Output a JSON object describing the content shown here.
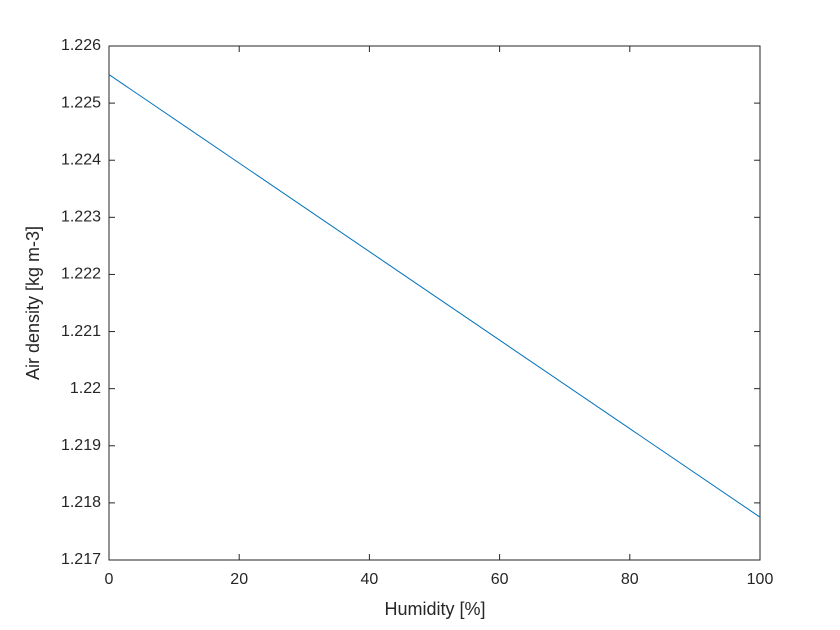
{
  "chart_data": {
    "type": "line",
    "xlabel": "Humidity [%]",
    "ylabel": "Air density [kg m-3]",
    "x": [
      0,
      100
    ],
    "series": [
      {
        "color": "#0072bd",
        "values": [
          1.2255,
          1.21775
        ]
      }
    ],
    "xlim": [
      0,
      100
    ],
    "xticks": [
      0,
      20,
      40,
      60,
      80,
      100
    ],
    "ylim": [
      1.217,
      1.226
    ],
    "yticks": [
      1.217,
      1.218,
      1.219,
      1.22,
      1.221,
      1.222,
      1.223,
      1.224,
      1.225,
      1.226
    ],
    "grid": false,
    "box": true
  }
}
